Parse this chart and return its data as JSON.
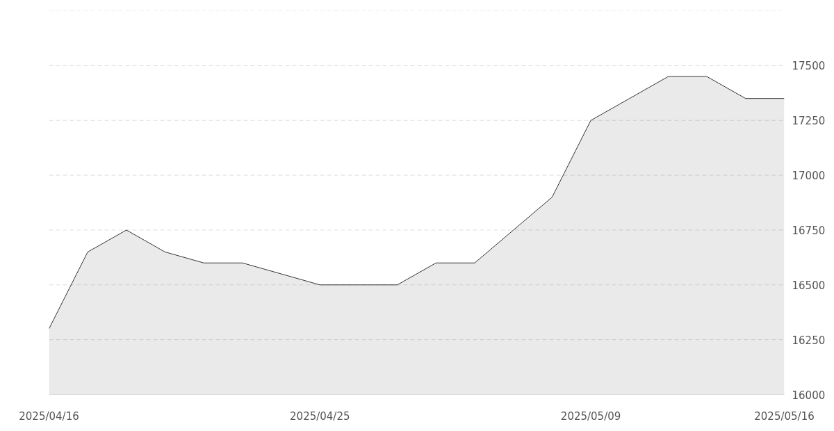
{
  "chart_data": {
    "type": "area",
    "categories": [
      "2025/04/16",
      null,
      null,
      null,
      null,
      null,
      null,
      "2025/04/25",
      null,
      null,
      null,
      null,
      null,
      null,
      "2025/05/09",
      null,
      null,
      null,
      null,
      "2025/05/16"
    ],
    "series": [
      {
        "color": "#333333",
        "values": [
          16300,
          16650,
          16750,
          16650,
          16600,
          16600,
          16550,
          16500,
          16500,
          16500,
          16600,
          16600,
          16750,
          16900,
          17250,
          17350,
          17450,
          17450,
          17350,
          17350
        ]
      }
    ],
    "ylim": [
      16000,
      17750
    ],
    "yticks": [
      16000,
      16250,
      16500,
      16750,
      17000,
      17250,
      17500,
      {
        "value": 17750,
        "label": null
      }
    ],
    "grid": "y"
  }
}
